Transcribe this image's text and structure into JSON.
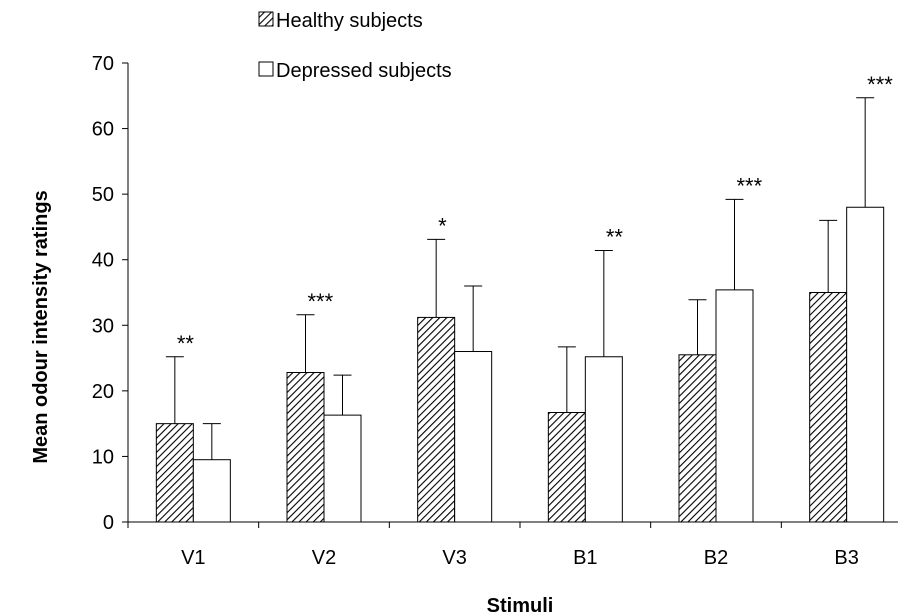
{
  "chart_data": {
    "type": "bar",
    "xlabel": "Stimuli",
    "ylabel": "Mean odour intensity ratings",
    "ylim": [
      0,
      70
    ],
    "yticks": [
      "0",
      "10",
      "20",
      "30",
      "40",
      "50",
      "60",
      "70"
    ],
    "categories": [
      "V1",
      "V2",
      "V3",
      "B1",
      "B2",
      "B3"
    ],
    "series": [
      {
        "name": "Healthy subjects",
        "pattern": "diagonal-hatch",
        "fill": "#ffffff",
        "stroke": "#000000",
        "values": [
          15,
          22.8,
          31.2,
          16.7,
          25.5,
          35
        ],
        "error": [
          10.2,
          8.8,
          11.9,
          10,
          8.4,
          11
        ]
      },
      {
        "name": "Depressed subjects",
        "pattern": "none",
        "fill": "#ffffff",
        "stroke": "#000000",
        "values": [
          9.5,
          16.3,
          26,
          25.2,
          35.4,
          48
        ],
        "error": [
          5.5,
          6.1,
          10,
          16.2,
          13.8,
          16.7
        ]
      }
    ],
    "significance": [
      "**",
      "***",
      "*",
      "**",
      "***",
      "***"
    ],
    "legend_position": "top-center",
    "grid": false
  }
}
